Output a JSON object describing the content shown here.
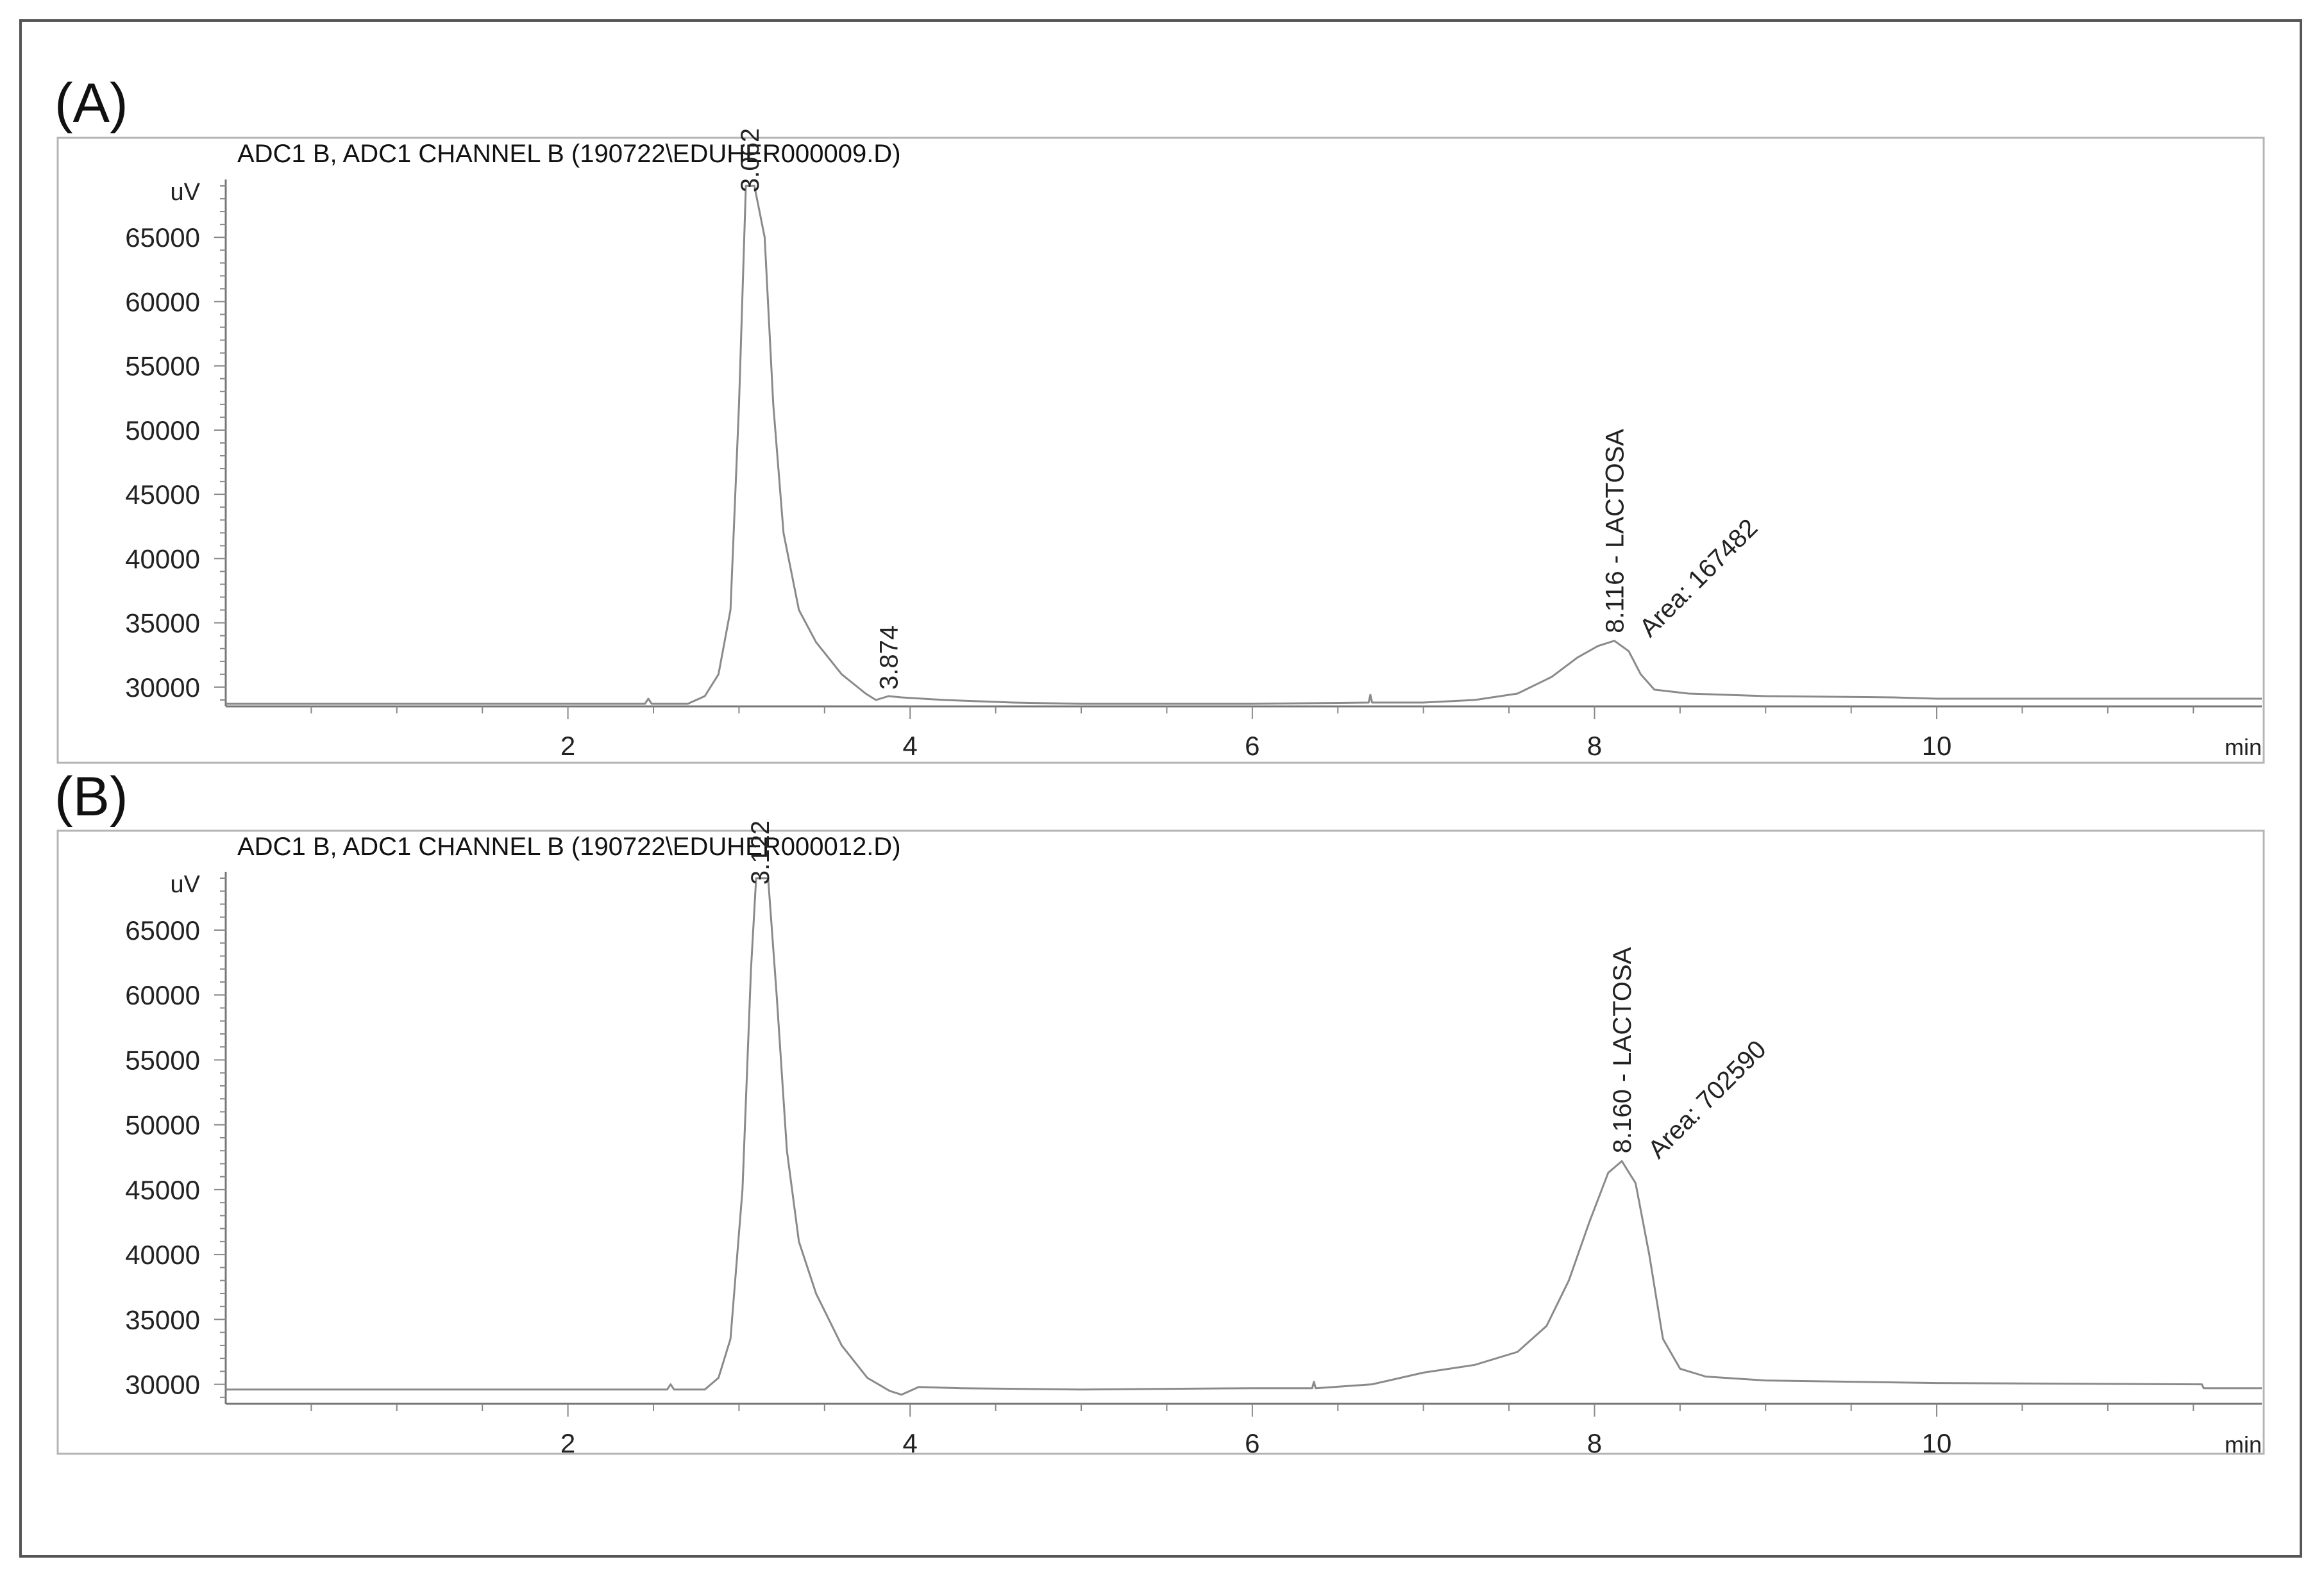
{
  "chart_data": [
    {
      "panel_label": "(A)",
      "type": "line",
      "title": "ADC1 B, ADC1 CHANNEL B (190722\\EDUHER000009.D)",
      "ylabel": "uV",
      "xlabel": "min",
      "xlim": [
        0,
        11.9
      ],
      "ylim": [
        28500,
        69000
      ],
      "x_ticks": [
        2,
        4,
        6,
        8,
        10
      ],
      "y_ticks": [
        30000,
        35000,
        40000,
        45000,
        50000,
        55000,
        60000,
        65000
      ],
      "series": [
        {
          "points": [
            [
              0.0,
              28700
            ],
            [
              2.45,
              28700
            ],
            [
              2.47,
              29100
            ],
            [
              2.49,
              28700
            ],
            [
              2.7,
              28700
            ],
            [
              2.8,
              29300
            ],
            [
              2.88,
              31000
            ],
            [
              2.95,
              36000
            ],
            [
              3.0,
              52000
            ],
            [
              3.04,
              69000
            ],
            [
              3.09,
              69000
            ],
            [
              3.15,
              65000
            ],
            [
              3.2,
              52000
            ],
            [
              3.26,
              42000
            ],
            [
              3.35,
              36000
            ],
            [
              3.45,
              33500
            ],
            [
              3.6,
              31000
            ],
            [
              3.74,
              29500
            ],
            [
              3.8,
              29000
            ],
            [
              3.874,
              29300
            ],
            [
              3.95,
              29200
            ],
            [
              4.2,
              29000
            ],
            [
              4.6,
              28800
            ],
            [
              5.0,
              28700
            ],
            [
              6.0,
              28700
            ],
            [
              6.68,
              28800
            ],
            [
              6.69,
              29400
            ],
            [
              6.7,
              28800
            ],
            [
              7.0,
              28800
            ],
            [
              7.3,
              29000
            ],
            [
              7.55,
              29500
            ],
            [
              7.75,
              30800
            ],
            [
              7.9,
              32300
            ],
            [
              8.02,
              33200
            ],
            [
              8.116,
              33600
            ],
            [
              8.2,
              32800
            ],
            [
              8.27,
              31000
            ],
            [
              8.35,
              29800
            ],
            [
              8.55,
              29500
            ],
            [
              9.0,
              29300
            ],
            [
              9.75,
              29200
            ],
            [
              10.0,
              29100
            ],
            [
              11.9,
              29100
            ]
          ]
        }
      ],
      "annotations": [
        {
          "text": "3.062",
          "x": 3.062,
          "y": 68500
        },
        {
          "text": "3.874",
          "x": 3.874,
          "y": 29800
        },
        {
          "text": "8.116 -  LACTOSA",
          "x": 8.116,
          "y": 34200
        },
        {
          "text": "Area: 167482",
          "x": 8.25,
          "y": 33800
        }
      ]
    },
    {
      "panel_label": "(B)",
      "type": "line",
      "title": "ADC1 B, ADC1 CHANNEL B (190722\\EDUHER000012.D)",
      "ylabel": "uV",
      "xlabel": "min",
      "xlim": [
        0,
        11.9
      ],
      "ylim": [
        28500,
        69000
      ],
      "x_ticks": [
        2,
        4,
        6,
        8,
        10
      ],
      "y_ticks": [
        30000,
        35000,
        40000,
        45000,
        50000,
        55000,
        60000,
        65000
      ],
      "series": [
        {
          "points": [
            [
              0.0,
              29600
            ],
            [
              2.58,
              29600
            ],
            [
              2.6,
              30000
            ],
            [
              2.62,
              29600
            ],
            [
              2.8,
              29600
            ],
            [
              2.88,
              30500
            ],
            [
              2.95,
              33500
            ],
            [
              3.02,
              45000
            ],
            [
              3.07,
              62000
            ],
            [
              3.1,
              69000
            ],
            [
              3.17,
              69000
            ],
            [
              3.22,
              60000
            ],
            [
              3.28,
              48000
            ],
            [
              3.35,
              41000
            ],
            [
              3.45,
              37000
            ],
            [
              3.6,
              33000
            ],
            [
              3.75,
              30500
            ],
            [
              3.88,
              29500
            ],
            [
              3.95,
              29200
            ],
            [
              4.05,
              29800
            ],
            [
              4.3,
              29700
            ],
            [
              5.0,
              29600
            ],
            [
              6.0,
              29700
            ],
            [
              6.35,
              29700
            ],
            [
              6.36,
              30200
            ],
            [
              6.37,
              29700
            ],
            [
              6.7,
              30000
            ],
            [
              7.0,
              30900
            ],
            [
              7.3,
              31500
            ],
            [
              7.55,
              32500
            ],
            [
              7.72,
              34500
            ],
            [
              7.85,
              38000
            ],
            [
              7.97,
              42500
            ],
            [
              8.08,
              46300
            ],
            [
              8.16,
              47200
            ],
            [
              8.24,
              45500
            ],
            [
              8.32,
              40000
            ],
            [
              8.4,
              33500
            ],
            [
              8.5,
              31200
            ],
            [
              8.65,
              30600
            ],
            [
              9.0,
              30300
            ],
            [
              10.0,
              30100
            ],
            [
              11.55,
              30000
            ],
            [
              11.56,
              29700
            ],
            [
              11.9,
              29700
            ]
          ]
        }
      ],
      "annotations": [
        {
          "text": "3.122",
          "x": 3.122,
          "y": 68500
        },
        {
          "text": "8.160 -  LACTOSA",
          "x": 8.16,
          "y": 47800
        },
        {
          "text": "Area: 702590",
          "x": 8.3,
          "y": 47300
        }
      ]
    }
  ]
}
